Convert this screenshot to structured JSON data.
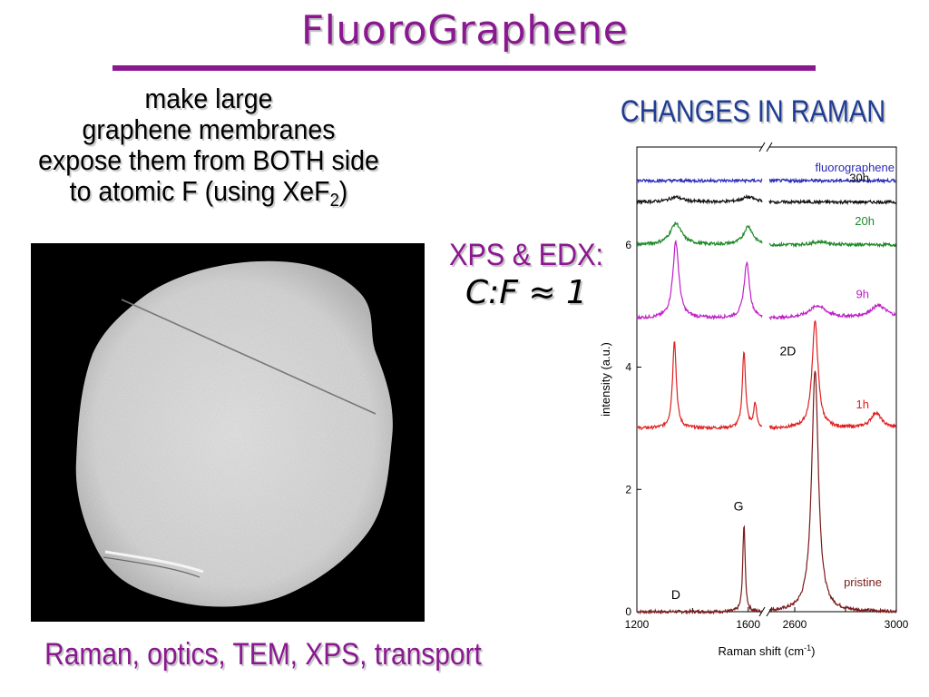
{
  "slide": {
    "title": "FluoroGraphene",
    "bullet_lines": [
      "make large",
      "graphene membranes",
      "expose them from BOTH side"
    ],
    "bullet_last_prefix": "to atomic F (using XeF",
    "bullet_last_sub": "2",
    "bullet_last_suffix": ")",
    "xps_label": "XPS & EDX:",
    "ratio_text": "C:F ≈ 1",
    "raman_heading": "CHANGES IN RAMAN",
    "techniques": "Raman, optics, TEM, XPS, transport"
  },
  "colors": {
    "title": "#8a1890",
    "heading_blue": "#1f3c95",
    "fluorographene": "#2a2ab8",
    "h30": "#111111",
    "h20": "#1e8a2a",
    "h9": "#c020c8",
    "h1": "#e02020",
    "pristine": "#7a1a1a"
  },
  "chart_data": {
    "type": "line",
    "xlabel": "Raman shift (cm",
    "xlabel_sup": "-1",
    "xlabel_close": ")",
    "ylabel": "intensity (a.u.)",
    "left_panel": {
      "xlim": [
        1200,
        1650
      ],
      "ticks": [
        1200,
        1600
      ]
    },
    "right_panel": {
      "xlim": [
        2500,
        3000
      ],
      "ticks": [
        2600,
        3000
      ]
    },
    "ylim": [
      0,
      7.6
    ],
    "yticks": [
      0,
      2,
      4,
      6
    ],
    "peak_labels": {
      "D": "D",
      "G": "G",
      "2D": "2D"
    },
    "series": [
      {
        "name": "pristine",
        "color": "#7a1a1a",
        "offset": 0.0,
        "left_peaks": [
          [
            1585,
            1.45,
            5
          ]
        ],
        "right_peaks": [
          [
            2680,
            3.95,
            16
          ]
        ]
      },
      {
        "name": "1h",
        "color": "#e02020",
        "offset": 3.0,
        "left_peaks": [
          [
            1335,
            1.45,
            8
          ],
          [
            1585,
            1.25,
            7
          ],
          [
            1625,
            0.4,
            6
          ]
        ],
        "right_peaks": [
          [
            2680,
            1.75,
            14
          ],
          [
            2920,
            0.25,
            25
          ]
        ]
      },
      {
        "name": "9h",
        "color": "#c020c8",
        "offset": 4.8,
        "left_peaks": [
          [
            1340,
            1.25,
            13
          ],
          [
            1595,
            0.9,
            12
          ]
        ],
        "right_peaks": [
          [
            2690,
            0.2,
            40
          ],
          [
            2930,
            0.2,
            40
          ]
        ]
      },
      {
        "name": "20h",
        "color": "#1e8a2a",
        "offset": 6.0,
        "left_peaks": [
          [
            1340,
            0.35,
            25
          ],
          [
            1600,
            0.3,
            20
          ]
        ],
        "right_peaks": [
          [
            2700,
            0.05,
            40
          ]
        ]
      },
      {
        "name": "30h",
        "color": "#111111",
        "offset": 6.7,
        "left_peaks": [
          [
            1340,
            0.08,
            30
          ],
          [
            1600,
            0.08,
            30
          ]
        ],
        "right_peaks": []
      },
      {
        "name": "fluorographene",
        "color": "#2a2ab8",
        "offset": 7.05,
        "left_peaks": [],
        "right_peaks": []
      }
    ]
  }
}
